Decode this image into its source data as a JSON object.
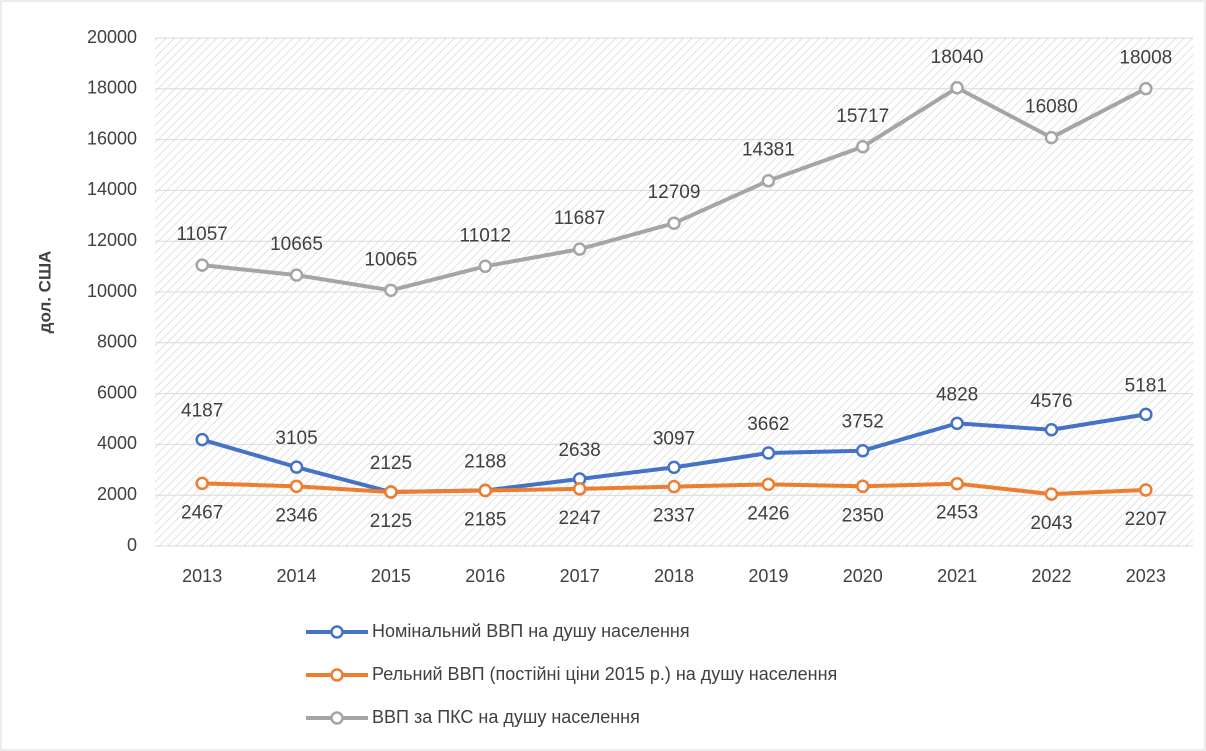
{
  "chart_data": {
    "type": "line",
    "y_label": "дол. США",
    "categories": [
      "2013",
      "2014",
      "2015",
      "2016",
      "2017",
      "2018",
      "2019",
      "2020",
      "2021",
      "2022",
      "2023"
    ],
    "series": [
      {
        "name": "Номінальний ВВП на душу населення",
        "color": "#4472c4",
        "values": [
          4187,
          3105,
          2125,
          2188,
          2638,
          3097,
          3662,
          3752,
          4828,
          4576,
          5181
        ]
      },
      {
        "name": "Рельний ВВП (постійні ціни 2015 р.) на душу населення",
        "color": "#ed7d31",
        "values": [
          2467,
          2346,
          2125,
          2185,
          2247,
          2337,
          2426,
          2350,
          2453,
          2043,
          2207
        ]
      },
      {
        "name": "ВВП за ПКС на душу населення",
        "color": "#a5a5a5",
        "values": [
          11057,
          10665,
          10065,
          11012,
          11687,
          12709,
          14381,
          15717,
          18040,
          16080,
          18008
        ]
      }
    ],
    "ylim": [
      0,
      20000
    ],
    "yticks": [
      0,
      2000,
      4000,
      6000,
      8000,
      10000,
      12000,
      14000,
      16000,
      18000,
      20000
    ],
    "grid": true
  }
}
